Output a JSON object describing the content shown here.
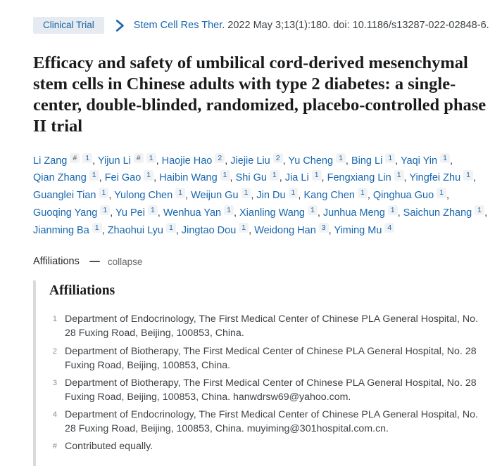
{
  "header": {
    "publication_type": "Clinical Trial",
    "journal": "Stem Cell Res Ther",
    "citation_rest": ". 2022 May 3;13(1):180.",
    "doi": "doi: 10.1186/s13287-022-02848-6."
  },
  "title": "Efficacy and safety of umbilical cord-derived mesenchymal stem cells in Chinese adults with type 2 diabetes: a single-center, double-blinded, randomized, placebo-controlled phase II trial",
  "authors": [
    {
      "name": "Li Zang",
      "sups": [
        "#",
        "1"
      ]
    },
    {
      "name": "Yijun Li",
      "sups": [
        "#",
        "1"
      ]
    },
    {
      "name": "Haojie Hao",
      "sups": [
        "2"
      ]
    },
    {
      "name": "Jiejie Liu",
      "sups": [
        "2"
      ]
    },
    {
      "name": "Yu Cheng",
      "sups": [
        "1"
      ]
    },
    {
      "name": "Bing Li",
      "sups": [
        "1"
      ]
    },
    {
      "name": "Yaqi Yin",
      "sups": [
        "1"
      ]
    },
    {
      "name": "Qian Zhang",
      "sups": [
        "1"
      ]
    },
    {
      "name": "Fei Gao",
      "sups": [
        "1"
      ]
    },
    {
      "name": "Haibin Wang",
      "sups": [
        "1"
      ]
    },
    {
      "name": "Shi Gu",
      "sups": [
        "1"
      ]
    },
    {
      "name": "Jia Li",
      "sups": [
        "1"
      ]
    },
    {
      "name": "Fengxiang Lin",
      "sups": [
        "1"
      ]
    },
    {
      "name": "Yingfei Zhu",
      "sups": [
        "1"
      ]
    },
    {
      "name": "Guanglei Tian",
      "sups": [
        "1"
      ]
    },
    {
      "name": "Yulong Chen",
      "sups": [
        "1"
      ]
    },
    {
      "name": "Weijun Gu",
      "sups": [
        "1"
      ]
    },
    {
      "name": "Jin Du",
      "sups": [
        "1"
      ]
    },
    {
      "name": "Kang Chen",
      "sups": [
        "1"
      ]
    },
    {
      "name": "Qinghua Guo",
      "sups": [
        "1"
      ]
    },
    {
      "name": "Guoqing Yang",
      "sups": [
        "1"
      ]
    },
    {
      "name": "Yu Pei",
      "sups": [
        "1"
      ]
    },
    {
      "name": "Wenhua Yan",
      "sups": [
        "1"
      ]
    },
    {
      "name": "Xianling Wang",
      "sups": [
        "1"
      ]
    },
    {
      "name": "Junhua Meng",
      "sups": [
        "1"
      ]
    },
    {
      "name": "Saichun Zhang",
      "sups": [
        "1"
      ]
    },
    {
      "name": "Jianming Ba",
      "sups": [
        "1"
      ]
    },
    {
      "name": "Zhaohui Lyu",
      "sups": [
        "1"
      ]
    },
    {
      "name": "Jingtao Dou",
      "sups": [
        "1"
      ]
    },
    {
      "name": "Weidong Han",
      "sups": [
        "3"
      ]
    },
    {
      "name": "Yiming Mu",
      "sups": [
        "4"
      ]
    }
  ],
  "affiliations_toggle": {
    "label": "Affiliations",
    "action": "collapse"
  },
  "affiliations": {
    "heading": "Affiliations",
    "items": [
      {
        "label": "1",
        "text": "Department of Endocrinology, The First Medical Center of Chinese PLA General Hospital, No. 28 Fuxing Road, Beijing, 100853, China."
      },
      {
        "label": "2",
        "text": "Department of Biotherapy, The First Medical Center of Chinese PLA General Hospital, No. 28 Fuxing Road, Beijing, 100853, China."
      },
      {
        "label": "3",
        "text": "Department of Biotherapy, The First Medical Center of Chinese PLA General Hospital, No. 28 Fuxing Road, Beijing, 100853, China. hanwdrsw69@yahoo.com."
      },
      {
        "label": "4",
        "text": "Department of Endocrinology, The First Medical Center of Chinese PLA General Hospital, No. 28 Fuxing Road, Beijing, 100853, China. muyiming@301hospital.com.cn."
      },
      {
        "label": "#",
        "text": "Contributed equally."
      }
    ]
  },
  "colors": {
    "link_blue": "#1866ad",
    "badge_bg": "#e6ebf2",
    "text": "#3e4347",
    "muted": "#66696c",
    "panel_bar": "#d9dadb"
  }
}
